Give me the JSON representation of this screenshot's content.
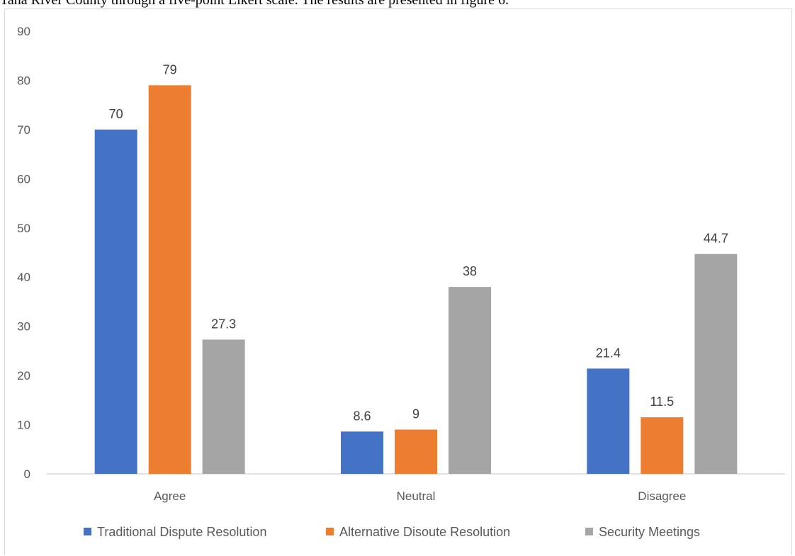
{
  "document": {
    "intro_line": "Tana River County through a five-point Likert scale. The results are presented in figure 6."
  },
  "colors": {
    "traditional": "#4472c4",
    "alternative": "#ed7d31",
    "security": "#a5a5a5",
    "axis": "#d9d9d9"
  },
  "chart_data": {
    "type": "bar",
    "title": "",
    "xlabel": "",
    "ylabel": "",
    "categories": [
      "Agree",
      "Neutral",
      "Disagree"
    ],
    "ylim": [
      0,
      90
    ],
    "yticks": [
      0,
      10,
      20,
      30,
      40,
      50,
      60,
      70,
      80,
      90
    ],
    "grid": false,
    "legend_position": "bottom",
    "series": [
      {
        "name": "Traditional Dispute Resolution",
        "values": [
          70,
          8.6,
          21.4
        ],
        "labels": [
          "70",
          "8.6",
          "21.4"
        ]
      },
      {
        "name": "Alternative Disoute Resolution",
        "values": [
          79,
          9,
          11.5
        ],
        "labels": [
          "79",
          "9",
          "11.5"
        ]
      },
      {
        "name": "Security Meetings",
        "values": [
          27.3,
          38,
          44.7
        ],
        "labels": [
          "27.3",
          "38",
          "44.7"
        ]
      }
    ]
  }
}
